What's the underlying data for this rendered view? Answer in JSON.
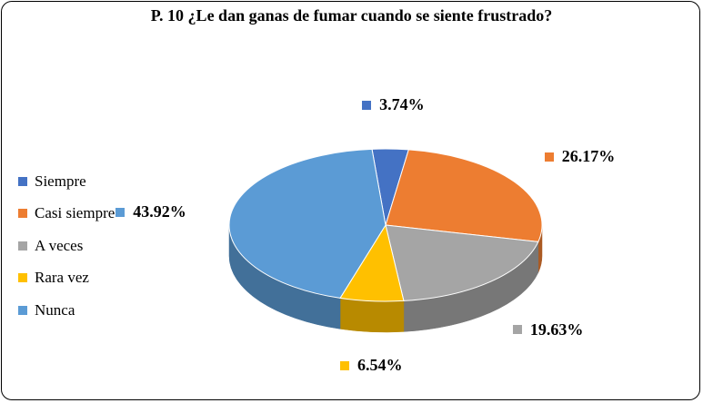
{
  "chart_data": {
    "type": "pie",
    "title": "P. 10 ¿Le dan ganas de fumar cuando se siente frustrado?",
    "categories": [
      "Siempre",
      "Casi siempre",
      "A veces",
      "Rara vez",
      "Nunca"
    ],
    "values": [
      3.74,
      26.17,
      19.63,
      6.54,
      43.92
    ],
    "value_labels": [
      "3.74%",
      "26.17%",
      "19.63%",
      "6.54%",
      "43.92%"
    ],
    "colors": [
      "#4472c4",
      "#ed7d31",
      "#a5a5a5",
      "#ffc000",
      "#5b9bd5"
    ],
    "legend_position": "left",
    "style": "3d"
  }
}
